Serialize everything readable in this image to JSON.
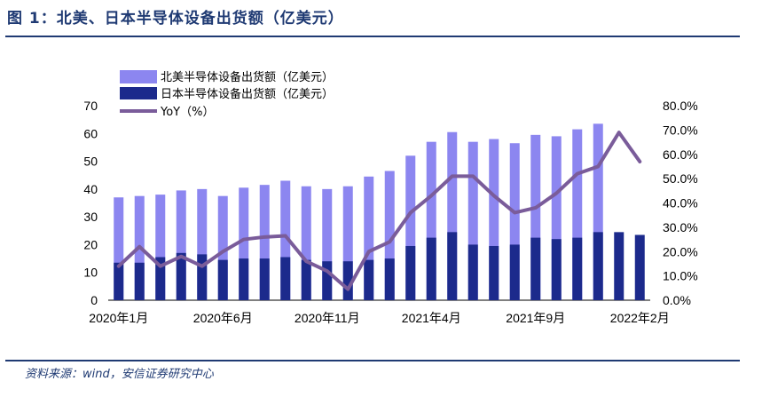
{
  "header": {
    "title": "图 1：北美、日本半导体设备出货额（亿美元）"
  },
  "footer": {
    "source": "资料来源：wind，安信证券研究中心"
  },
  "colors": {
    "north_america": "#8c86f0",
    "japan": "#1c2a8c",
    "yoy": "#7a5c9a",
    "rule": "#1f3a73"
  },
  "chart_data": {
    "type": "bar",
    "categories": [
      "2020年1月",
      "2020年2月",
      "2020年3月",
      "2020年4月",
      "2020年5月",
      "2020年6月",
      "2020年7月",
      "2020年8月",
      "2020年9月",
      "2020年10月",
      "2020年11月",
      "2020年12月",
      "2021年1月",
      "2021年2月",
      "2021年3月",
      "2021年4月",
      "2021年5月",
      "2021年6月",
      "2021年7月",
      "2021年8月",
      "2021年9月",
      "2021年10月",
      "2021年11月",
      "2021年12月",
      "2022年1月",
      "2022年2月"
    ],
    "x_tick_labels": [
      "2020年1月",
      "2020年6月",
      "2020年11月",
      "2021年4月",
      "2021年9月",
      "2022年2月"
    ],
    "x_tick_indices": [
      0,
      5,
      10,
      15,
      20,
      25
    ],
    "series": [
      {
        "name": "北美半导体设备出货额（亿美元）",
        "kind": "bar",
        "axis": "left",
        "values": [
          37,
          37.5,
          38,
          39.5,
          40,
          37.5,
          40.5,
          41.5,
          43,
          41,
          40,
          41,
          44.5,
          46.5,
          52,
          57,
          60.5,
          57,
          58,
          56.5,
          59.5,
          59,
          61.5,
          63.5,
          null,
          null
        ]
      },
      {
        "name": "日本半导体设备出货额（亿美元）",
        "kind": "bar",
        "axis": "left",
        "values": [
          13.5,
          13.5,
          15.5,
          17,
          16.5,
          14.5,
          15,
          15,
          15.5,
          14.5,
          14,
          14,
          14.5,
          15,
          19.5,
          22.5,
          24.5,
          20,
          19.5,
          20,
          22.5,
          22,
          22.5,
          24.5,
          24.5,
          23.5
        ]
      },
      {
        "name": "YoY（%）",
        "kind": "line",
        "axis": "right",
        "values": [
          0.14,
          0.22,
          0.14,
          0.18,
          0.14,
          0.2,
          0.25,
          0.26,
          0.265,
          0.16,
          0.12,
          0.045,
          0.2,
          0.24,
          0.36,
          0.43,
          0.51,
          0.51,
          0.43,
          0.36,
          0.38,
          0.44,
          0.52,
          0.55,
          0.69,
          0.57
        ]
      }
    ],
    "left_axis": {
      "min": 0,
      "max": 70,
      "ticks": [
        "0",
        "10",
        "20",
        "30",
        "40",
        "50",
        "60",
        "70"
      ]
    },
    "right_axis": {
      "min": 0,
      "max": 0.8,
      "ticks": [
        "0.0%",
        "10.0%",
        "20.0%",
        "30.0%",
        "40.0%",
        "50.0%",
        "60.0%",
        "70.0%",
        "80.0%"
      ]
    },
    "legend_position": "top-left",
    "grid": false
  }
}
